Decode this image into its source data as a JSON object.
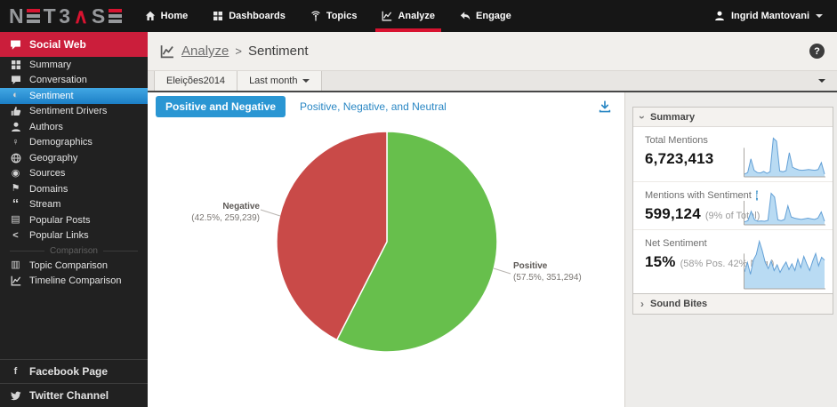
{
  "topnav": {
    "logo_text": "NETBASE",
    "items": [
      {
        "label": "Home",
        "icon": "home-icon",
        "active": false
      },
      {
        "label": "Dashboards",
        "icon": "dashboards-icon",
        "active": false
      },
      {
        "label": "Topics",
        "icon": "topics-icon",
        "active": false
      },
      {
        "label": "Analyze",
        "icon": "analyze-icon",
        "active": true
      },
      {
        "label": "Engage",
        "icon": "engage-icon",
        "active": false
      }
    ],
    "user": {
      "name": "Ingrid Mantovani"
    }
  },
  "sidebar": {
    "header": {
      "label": "Social Web",
      "icon": "social-web-icon"
    },
    "items": [
      {
        "label": "Summary",
        "icon": "summary-icon",
        "selected": false
      },
      {
        "label": "Conversation",
        "icon": "conversation-icon",
        "selected": false
      },
      {
        "label": "Sentiment",
        "icon": "sentiment-icon",
        "selected": true
      },
      {
        "label": "Sentiment Drivers",
        "icon": "sentiment-drivers-icon",
        "selected": false
      },
      {
        "label": "Authors",
        "icon": "authors-icon",
        "selected": false
      },
      {
        "label": "Demographics",
        "icon": "demographics-icon",
        "selected": false
      },
      {
        "label": "Geography",
        "icon": "geography-icon",
        "selected": false
      },
      {
        "label": "Sources",
        "icon": "sources-icon",
        "selected": false
      },
      {
        "label": "Domains",
        "icon": "domains-icon",
        "selected": false
      },
      {
        "label": "Stream",
        "icon": "stream-icon",
        "selected": false
      },
      {
        "label": "Popular Posts",
        "icon": "popular-posts-icon",
        "selected": false
      },
      {
        "label": "Popular Links",
        "icon": "popular-links-icon",
        "selected": false
      }
    ],
    "separator_label": "Comparison",
    "comparison_items": [
      {
        "label": "Topic Comparison",
        "icon": "topic-comparison-icon",
        "selected": false
      },
      {
        "label": "Timeline Comparison",
        "icon": "timeline-comparison-icon",
        "selected": false
      }
    ],
    "footer_items": [
      {
        "label": "Facebook Page",
        "icon": "facebook-icon"
      },
      {
        "label": "Twitter Channel",
        "icon": "twitter-icon"
      }
    ]
  },
  "breadcrumb": {
    "link": "Analyze",
    "separator": ">",
    "current": "Sentiment",
    "help_label": "?"
  },
  "filter_bar": {
    "topic_tab": "Eleições2014",
    "time_range": "Last month"
  },
  "view_tabs": [
    {
      "label": "Positive and Negative",
      "active": true
    },
    {
      "label": "Positive, Negative, and Neutral",
      "active": false
    }
  ],
  "summary_panel": {
    "title": "Summary",
    "stats": [
      {
        "label": "Total Mentions",
        "value": "6,723,413",
        "note": "",
        "has_info": false,
        "spark": "total-mentions-trend"
      },
      {
        "label": "Mentions with Sentiment",
        "value": "599,124",
        "note": "(9% of Total)",
        "has_info": true,
        "spark": "mentions-with-sentiment-trend"
      },
      {
        "label": "Net Sentiment",
        "value": "15%",
        "note": "(58% Pos. 42% Neg.)",
        "has_info": false,
        "spark": "net-sentiment-trend"
      }
    ]
  },
  "sound_bites_panel": {
    "title": "Sound Bites"
  },
  "colors": {
    "positive_green": "#67bf4c",
    "negative_red": "#c94a48",
    "accent_red": "#d81330",
    "selection_blue": "#2a96d3",
    "spark_fill": "#b9dbf3",
    "spark_line": "#63a0d6"
  },
  "chart_data": [
    {
      "type": "pie",
      "name": "sentiment-pie",
      "title": "Positive and Negative sentiment share",
      "start_angle_deg": 0,
      "direction": "clockwise",
      "slices": [
        {
          "label": "Positive",
          "percent": 57.5,
          "count": 351294,
          "display": "(57.5%, 351,294)",
          "color": "#67bf4c"
        },
        {
          "label": "Negative",
          "percent": 42.5,
          "count": 259239,
          "display": "(42.5%, 259,239)",
          "color": "#c94a48"
        }
      ]
    },
    {
      "type": "area",
      "name": "total-mentions-trend",
      "title": "Total Mentions trend (unlabeled sparkline, normalized 0-1)",
      "values_normalized": [
        0.06,
        0.1,
        0.46,
        0.16,
        0.1,
        0.09,
        0.13,
        0.08,
        0.12,
        1.0,
        0.92,
        0.14,
        0.12,
        0.15,
        0.62,
        0.24,
        0.2,
        0.17,
        0.16,
        0.17,
        0.18,
        0.17,
        0.16,
        0.18,
        0.36,
        0.06
      ]
    },
    {
      "type": "area",
      "name": "mentions-with-sentiment-trend",
      "title": "Mentions with Sentiment trend (unlabeled sparkline, normalized 0-1)",
      "values_normalized": [
        0.08,
        0.12,
        0.42,
        0.15,
        0.1,
        0.11,
        0.1,
        0.13,
        1.0,
        0.88,
        0.15,
        0.12,
        0.16,
        0.6,
        0.24,
        0.2,
        0.18,
        0.16,
        0.18,
        0.2,
        0.18,
        0.16,
        0.2,
        0.4,
        0.1
      ]
    },
    {
      "type": "area",
      "name": "net-sentiment-trend",
      "title": "Net Sentiment trend (unlabeled sparkline, normalized 0-1)",
      "values_normalized": [
        0.35,
        0.55,
        0.3,
        0.6,
        0.72,
        1.0,
        0.8,
        0.55,
        0.42,
        0.58,
        0.38,
        0.5,
        0.34,
        0.46,
        0.56,
        0.4,
        0.52,
        0.38,
        0.62,
        0.44,
        0.68,
        0.52,
        0.38,
        0.58,
        0.74,
        0.48,
        0.66,
        0.6
      ]
    }
  ]
}
